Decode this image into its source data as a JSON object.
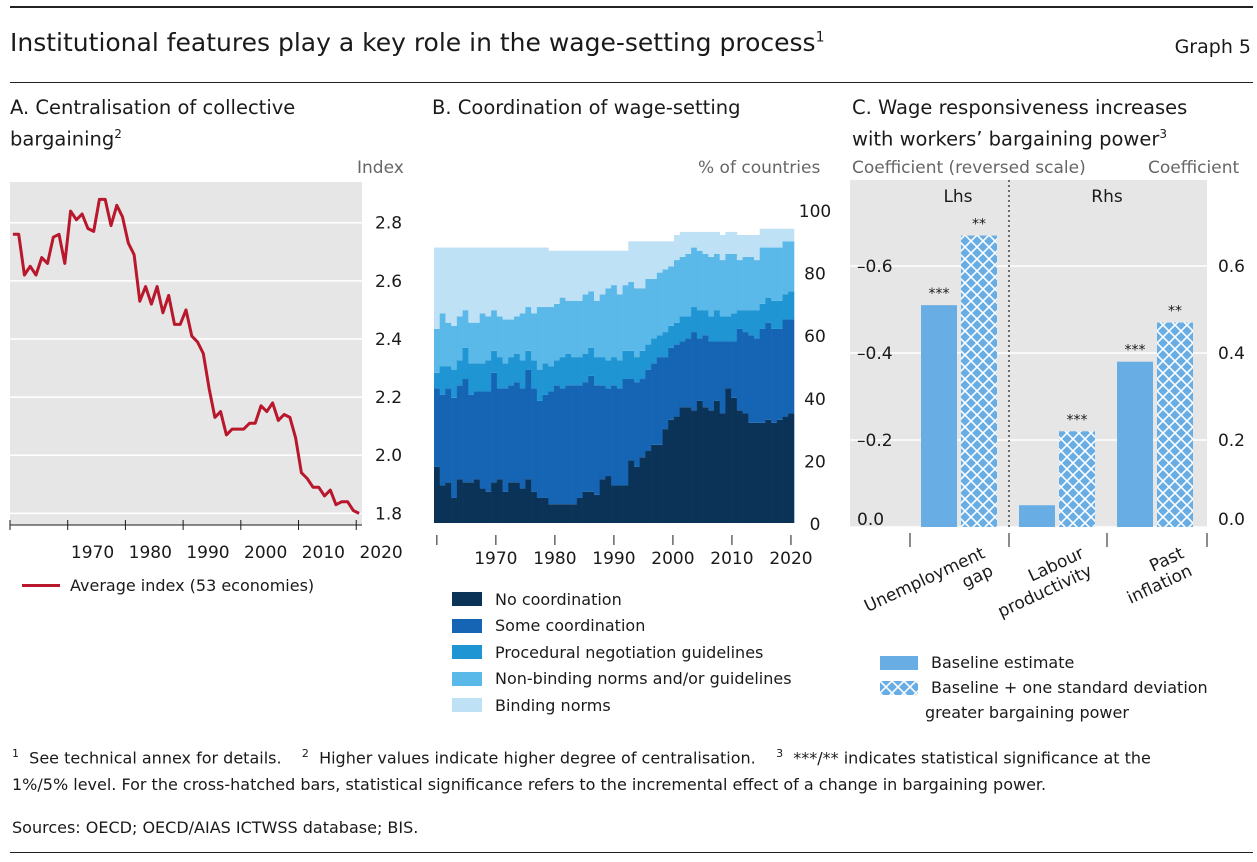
{
  "header": {
    "title": "Institutional features play a key role in the wage-setting process",
    "title_note": "1",
    "graph_label": "Graph 5"
  },
  "panels": {
    "a": {
      "title_line1": "A. Centralisation of collective",
      "title_line2": "bargaining",
      "title_note": "2",
      "unit": "Index",
      "legend": "Average index (53 economies)"
    },
    "b": {
      "title": "B. Coordination of wage-setting",
      "unit": "% of countries"
    },
    "c": {
      "title_line1": "C. Wage responsiveness increases",
      "title_line2": "with workers’ bargaining power",
      "title_note": "3",
      "unit_left": "Coefficient (reversed scale)",
      "unit_right": "Coefficient",
      "lhs_label": "Lhs",
      "rhs_label": "Rhs",
      "legend_baseline": "Baseline estimate",
      "legend_plus_line1": "Baseline + one standard deviation",
      "legend_plus_line2": "greater bargaining power"
    }
  },
  "footnotes": {
    "n1_mark": "1",
    "n1": "See technical annex for details.",
    "n2_mark": "2",
    "n2": "Higher values indicate higher degree of centralisation.",
    "n3_mark": "3",
    "n3_a": "***/** indicates statistical significance at the",
    "n3_b": "1%/5% level. For the cross-hatched bars, statistical significance refers to the incremental effect of a change in bargaining power.",
    "sources": "Sources: OECD; OECD/AIAS ICTWSS database; BIS."
  },
  "colors": {
    "line_red": "#b9172b",
    "coord": [
      "#0b3358",
      "#1565b4",
      "#1f95d3",
      "#5ab9e8",
      "#bfe1f5"
    ],
    "bar_blue": "#68ade4",
    "hatch_line": "#ffffff"
  },
  "chart_data": [
    {
      "type": "line",
      "title": "A. Centralisation of collective bargaining",
      "ylabel": "Index",
      "ylim": [
        1.8,
        2.9
      ],
      "yticks": [
        "1.8",
        "2.0",
        "2.2",
        "2.4",
        "2.6",
        "2.8"
      ],
      "xticks": [
        "1970",
        "1980",
        "1990",
        "2000",
        "2010",
        "2020"
      ],
      "x": [
        1960,
        1961,
        1962,
        1963,
        1964,
        1965,
        1966,
        1967,
        1968,
        1969,
        1970,
        1971,
        1972,
        1973,
        1974,
        1975,
        1976,
        1977,
        1978,
        1979,
        1980,
        1981,
        1982,
        1983,
        1984,
        1985,
        1986,
        1987,
        1988,
        1989,
        1990,
        1991,
        1992,
        1993,
        1994,
        1995,
        1996,
        1997,
        1998,
        1999,
        2000,
        2001,
        2002,
        2003,
        2004,
        2005,
        2006,
        2007,
        2008,
        2009,
        2010,
        2011,
        2012,
        2013,
        2014,
        2015,
        2016,
        2017,
        2018,
        2019,
        2020
      ],
      "series": [
        {
          "name": "Average index (53 economies)",
          "values": [
            2.76,
            2.76,
            2.62,
            2.65,
            2.62,
            2.68,
            2.66,
            2.75,
            2.76,
            2.66,
            2.84,
            2.81,
            2.83,
            2.78,
            2.77,
            2.88,
            2.88,
            2.79,
            2.86,
            2.82,
            2.73,
            2.69,
            2.53,
            2.58,
            2.52,
            2.58,
            2.49,
            2.55,
            2.45,
            2.45,
            2.5,
            2.41,
            2.39,
            2.35,
            2.23,
            2.13,
            2.15,
            2.07,
            2.09,
            2.09,
            2.09,
            2.11,
            2.11,
            2.17,
            2.15,
            2.18,
            2.12,
            2.14,
            2.13,
            2.06,
            1.94,
            1.92,
            1.89,
            1.89,
            1.86,
            1.88,
            1.83,
            1.84,
            1.84,
            1.81,
            1.8
          ]
        }
      ]
    },
    {
      "type": "bar",
      "stacked": true,
      "title": "B. Coordination of wage-setting",
      "ylabel": "% of countries",
      "ylim": [
        0,
        100
      ],
      "yticks": [
        "0",
        "20",
        "40",
        "60",
        "80",
        "100"
      ],
      "xticks": [
        "1970",
        "1980",
        "1990",
        "2000",
        "2010",
        "2020"
      ],
      "x_start": 1960,
      "x_end": 2020,
      "legend_position": "bottom",
      "series": [
        {
          "name": "No coordination",
          "values": [
            18,
            12,
            13,
            8,
            14,
            13,
            13,
            14,
            11,
            10,
            13,
            14,
            10,
            13,
            13,
            11,
            14,
            10,
            8,
            8,
            6,
            6,
            6,
            6,
            6,
            8,
            10,
            10,
            9,
            14,
            15,
            12,
            12,
            12,
            20,
            18,
            21,
            23,
            25,
            25,
            30,
            33,
            34,
            37,
            37,
            36,
            39,
            37,
            36,
            39,
            35,
            43,
            40,
            36,
            35,
            32,
            32,
            32,
            33,
            32,
            33,
            34,
            35
          ]
        },
        {
          "name": "Some coordination",
          "values": [
            25,
            29,
            30,
            32,
            30,
            33,
            28,
            28,
            31,
            32,
            35,
            29,
            33,
            31,
            32,
            32,
            35,
            33,
            31,
            33,
            36,
            38,
            37,
            38,
            38,
            36,
            35,
            37,
            35,
            30,
            28,
            32,
            31,
            34,
            26,
            27,
            25,
            26,
            26,
            28,
            23,
            23,
            23,
            21,
            22,
            25,
            20,
            23,
            22,
            19,
            23,
            15,
            18,
            26,
            26,
            28,
            27,
            30,
            31,
            30,
            29,
            31,
            30
          ]
        },
        {
          "name": "Procedural negotiation guidelines",
          "values": [
            5,
            9,
            7,
            9,
            8,
            10,
            10,
            9,
            9,
            10,
            7,
            10,
            8,
            9,
            9,
            9,
            6,
            9,
            10,
            10,
            8,
            8,
            10,
            10,
            9,
            9,
            9,
            9,
            9,
            9,
            9,
            9,
            9,
            9,
            9,
            8,
            9,
            8,
            8,
            7,
            8,
            7,
            7,
            8,
            7,
            8,
            9,
            8,
            8,
            10,
            8,
            8,
            9,
            6,
            7,
            8,
            9,
            8,
            8,
            9,
            9,
            8,
            9
          ]
        },
        {
          "name": "Non-binding norms and/or guidelines",
          "values": [
            14,
            17,
            14,
            14,
            14,
            12,
            13,
            13,
            16,
            14,
            13,
            13,
            14,
            12,
            12,
            15,
            14,
            15,
            20,
            18,
            19,
            18,
            19,
            17,
            18,
            18,
            19,
            18,
            18,
            20,
            23,
            23,
            21,
            21,
            22,
            22,
            20,
            21,
            19,
            20,
            20,
            19,
            20,
            19,
            20,
            19,
            19,
            18,
            19,
            18,
            18,
            20,
            19,
            16,
            17,
            17,
            16,
            18,
            16,
            17,
            17,
            17,
            16
          ]
        },
        {
          "name": "Binding norms",
          "values": [
            26,
            21,
            24,
            25,
            22,
            20,
            24,
            24,
            21,
            22,
            20,
            22,
            23,
            23,
            22,
            21,
            19,
            21,
            19,
            19,
            18,
            17,
            15,
            16,
            16,
            16,
            14,
            13,
            16,
            14,
            12,
            11,
            14,
            11,
            13,
            15,
            15,
            12,
            12,
            10,
            9,
            8,
            8,
            8,
            7,
            5,
            6,
            7,
            8,
            7,
            8,
            7,
            7,
            8,
            7,
            7,
            8,
            6,
            6,
            6,
            6,
            4,
            4
          ]
        }
      ],
      "top_band_extent": [
        100,
        100,
        100,
        100,
        100,
        100,
        100,
        100,
        100,
        100,
        100,
        100,
        100,
        100,
        100,
        100,
        100,
        100,
        100,
        100,
        100,
        100,
        100,
        100,
        100,
        100,
        100,
        100,
        100,
        100,
        100,
        100,
        100,
        100,
        100,
        100,
        100,
        100,
        100,
        100,
        100,
        100,
        100,
        100,
        100,
        100,
        100,
        100,
        100,
        100,
        100,
        100,
        100,
        100,
        100,
        100,
        100,
        100,
        100,
        100,
        100,
        100,
        100
      ]
    },
    {
      "type": "bar",
      "title": "C. Wage responsiveness increases with workers’ bargaining power",
      "categories": [
        "Unemployment gap",
        "Labour productivity",
        "Past inflation"
      ],
      "y_left": {
        "label": "Coefficient (reversed scale)",
        "lim": [
          0.0,
          -0.8
        ],
        "ticks": [
          "0.0",
          "–0.2",
          "–0.4",
          "–0.6"
        ]
      },
      "y_right": {
        "label": "Coefficient",
        "lim": [
          0.0,
          0.8
        ],
        "ticks": [
          "0.0",
          "0.2",
          "0.4",
          "0.6"
        ]
      },
      "series": [
        {
          "name": "Baseline estimate",
          "values": [
            -0.51,
            0.05,
            0.38
          ],
          "significance": [
            "***",
            "",
            "***"
          ]
        },
        {
          "name": "Baseline + one standard deviation greater bargaining power",
          "values": [
            -0.67,
            0.22,
            0.47
          ],
          "significance": [
            "**",
            "***",
            "**"
          ]
        }
      ],
      "axis_assignment": [
        "Lhs",
        "Rhs",
        "Rhs"
      ]
    }
  ]
}
